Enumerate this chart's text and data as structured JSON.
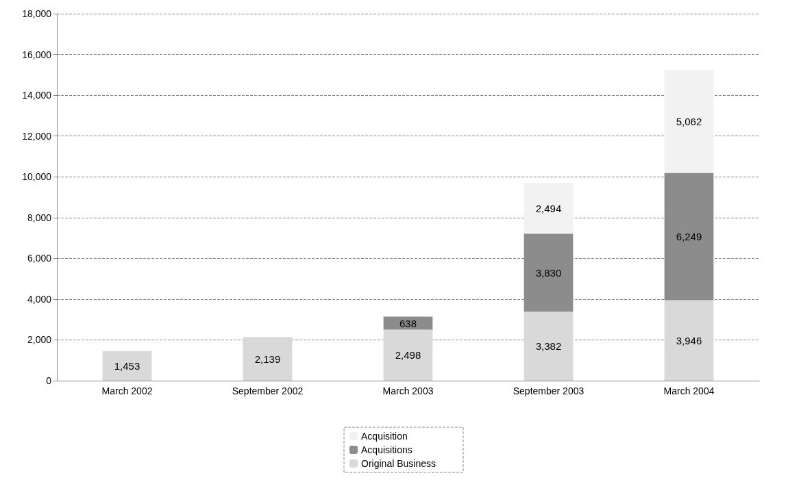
{
  "chart_data": {
    "type": "bar",
    "stacked": true,
    "grid": "y",
    "legend": "bottom",
    "categories": [
      "March 2002",
      "September 2002",
      "March 2003",
      "September 2003",
      "March 2004"
    ],
    "ylim": [
      0,
      18000
    ],
    "yticks": [
      0,
      {
        "value": 2000,
        "label": "2,000"
      },
      {
        "value": 4000,
        "label": "4,000"
      },
      {
        "value": 6000,
        "label": "6,000"
      },
      {
        "value": 8000,
        "label": "8,000"
      },
      {
        "value": 10000,
        "label": "10,000"
      },
      {
        "value": 12000,
        "label": "12,000"
      },
      {
        "value": 14000,
        "label": "14,000"
      },
      {
        "value": 16000,
        "label": "16,000"
      },
      {
        "value": 18000,
        "label": "18,000"
      }
    ],
    "series": [
      {
        "name": "Original Business",
        "color": "#d9d9d9",
        "values": [
          1453,
          2139,
          2498,
          3382,
          3946
        ],
        "value_labels": [
          "1,453",
          "2,139",
          "2,498",
          "3,382",
          "3,946"
        ]
      },
      {
        "name": "Acquisitions",
        "color": "#8c8c8c",
        "values": [
          null,
          null,
          638,
          3830,
          6249
        ],
        "value_labels": [
          null,
          null,
          "638",
          "3,830",
          "6,249"
        ]
      },
      {
        "name": "Acquisition",
        "color": "#f2f2f2",
        "values": [
          null,
          null,
          null,
          2494,
          5062
        ],
        "value_labels": [
          null,
          null,
          null,
          "2,494",
          "5,062"
        ]
      }
    ]
  }
}
